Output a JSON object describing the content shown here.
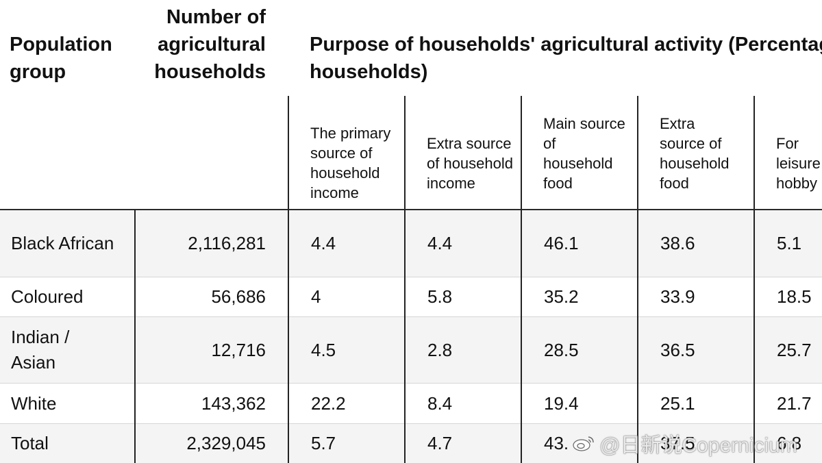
{
  "headers": {
    "population_group": "Population group",
    "number_of_households": "Number of agricultural households",
    "purpose_line1": "Purpose of households' agricultural activity (Percentag",
    "purpose_line2": "households)"
  },
  "subheaders": [
    "The primary source of household income",
    "Extra source of household income",
    "Main source of household food",
    "Extra source of household food",
    "For leisure / hobby"
  ],
  "rows": [
    {
      "group": "Black African",
      "households": "2,116,281",
      "values": [
        "4.4",
        "4.4",
        "46.1",
        "38.6",
        "5.1"
      ]
    },
    {
      "group": "Coloured",
      "households": "56,686",
      "values": [
        "4",
        "5.8",
        "35.2",
        "33.9",
        "18.5"
      ]
    },
    {
      "group": "Indian / Asian",
      "households": "12,716",
      "values": [
        "4.5",
        "2.8",
        "28.5",
        "36.5",
        "25.7"
      ]
    },
    {
      "group": "White",
      "households": "143,362",
      "values": [
        "22.2",
        "8.4",
        "19.4",
        "25.1",
        "21.7"
      ]
    },
    {
      "group": "Total",
      "households": "2,329,045",
      "values": [
        "5.7",
        "4.7",
        "43.",
        "37.5",
        "6.8"
      ]
    }
  ],
  "watermark": "@日新说Copernicium",
  "icons": {
    "watermark_logo": "weibo-logo-icon"
  },
  "colors": {
    "row_shade": "#f4f4f4",
    "grid_line": "#222222",
    "row_separator": "#d6d6d6"
  }
}
